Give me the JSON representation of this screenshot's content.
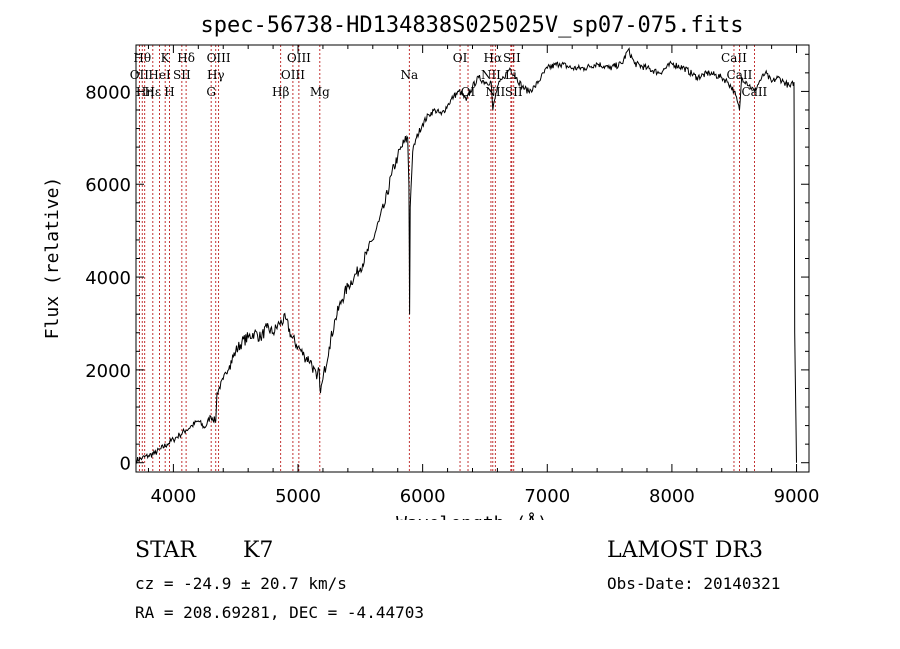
{
  "chart_data": {
    "type": "line",
    "title": "spec-56738-HD134838S025025V_sp07-075.fits",
    "xlabel": "Wavelength (Å)",
    "ylabel": "Flux (relative)",
    "xlim": [
      3700,
      9100
    ],
    "ylim": [
      -200,
      9000
    ],
    "xticks": [
      4000,
      5000,
      6000,
      7000,
      8000,
      9000
    ],
    "yticks": [
      0,
      2000,
      4000,
      6000,
      8000
    ],
    "tick_labels_x": [
      "4000",
      "5000",
      "6000",
      "7000",
      "8000",
      "9000"
    ],
    "tick_labels_y": [
      "0",
      "2000",
      "4000",
      "6000",
      "8000"
    ],
    "grid": false,
    "series": [
      {
        "name": "spectrum",
        "x": [
          3700,
          3750,
          3800,
          3850,
          3900,
          3950,
          4000,
          4050,
          4100,
          4150,
          4200,
          4250,
          4300,
          4340,
          4350,
          4400,
          4450,
          4500,
          4550,
          4600,
          4650,
          4700,
          4750,
          4800,
          4850,
          4900,
          4950,
          5000,
          5050,
          5100,
          5150,
          5170,
          5180,
          5200,
          5250,
          5300,
          5350,
          5400,
          5450,
          5500,
          5550,
          5600,
          5650,
          5700,
          5750,
          5800,
          5850,
          5880,
          5890,
          5895,
          5900,
          5920,
          5950,
          6000,
          6050,
          6100,
          6150,
          6200,
          6250,
          6300,
          6350,
          6400,
          6450,
          6500,
          6550,
          6563,
          6600,
          6650,
          6700,
          6750,
          6800,
          6850,
          6900,
          6950,
          7000,
          7100,
          7200,
          7300,
          7400,
          7500,
          7600,
          7650,
          7700,
          7800,
          7900,
          8000,
          8100,
          8200,
          8300,
          8400,
          8450,
          8500,
          8542,
          8560,
          8600,
          8662,
          8700,
          8750,
          8800,
          8850,
          8900,
          8950,
          8980,
          8985,
          9000
        ],
        "y": [
          50,
          100,
          150,
          200,
          300,
          400,
          500,
          600,
          700,
          800,
          900,
          750,
          1000,
          900,
          1500,
          1800,
          2100,
          2400,
          2600,
          2700,
          2800,
          2700,
          2900,
          2800,
          3000,
          3100,
          2700,
          2500,
          2300,
          2200,
          1800,
          2000,
          1500,
          1800,
          2500,
          3100,
          3500,
          3800,
          4000,
          4200,
          4500,
          4800,
          5200,
          5600,
          6200,
          6600,
          6900,
          7000,
          6000,
          3200,
          5500,
          6700,
          7000,
          7300,
          7500,
          7600,
          7500,
          7700,
          7900,
          8000,
          7800,
          8100,
          8300,
          8200,
          8200,
          7600,
          8100,
          8300,
          8500,
          8300,
          8100,
          8000,
          8100,
          8300,
          8500,
          8600,
          8500,
          8500,
          8600,
          8500,
          8600,
          8900,
          8600,
          8500,
          8400,
          8600,
          8500,
          8300,
          8400,
          8300,
          8200,
          8000,
          7600,
          8300,
          8200,
          8000,
          8200,
          8400,
          8200,
          8300,
          8200,
          8100,
          8200,
          2800,
          0
        ]
      }
    ],
    "line_markers": [
      {
        "wl": 3750,
        "label": "Hθ",
        "tier": 0
      },
      {
        "wl": 3727,
        "label": "OII",
        "tier": 1
      },
      {
        "wl": 3770,
        "label": "Hη",
        "tier": 2
      },
      {
        "wl": 3835,
        "label": "Hε",
        "tier": 2
      },
      {
        "wl": 3889,
        "label": "HeI",
        "tier": 1
      },
      {
        "wl": 3934,
        "label": "K",
        "tier": 0
      },
      {
        "wl": 3969,
        "label": "H",
        "tier": 2
      },
      {
        "wl": 4068,
        "label": "SII",
        "tier": 1
      },
      {
        "wl": 4102,
        "label": "Hδ",
        "tier": 0
      },
      {
        "wl": 4303,
        "label": "G",
        "tier": 2
      },
      {
        "wl": 4340,
        "label": "Hγ",
        "tier": 1
      },
      {
        "wl": 4363,
        "label": "OIII",
        "tier": 0
      },
      {
        "wl": 4861,
        "label": "Hβ",
        "tier": 2
      },
      {
        "wl": 4959,
        "label": "OIII",
        "tier": 1
      },
      {
        "wl": 5007,
        "label": "OIII",
        "tier": 0
      },
      {
        "wl": 5175,
        "label": "Mg",
        "tier": 2
      },
      {
        "wl": 5893,
        "label": "Na",
        "tier": 1
      },
      {
        "wl": 6300,
        "label": "OI",
        "tier": 0
      },
      {
        "wl": 6364,
        "label": "OI",
        "tier": 2
      },
      {
        "wl": 6548,
        "label": "NII",
        "tier": 1
      },
      {
        "wl": 6563,
        "label": "Hα",
        "tier": 0
      },
      {
        "wl": 6583,
        "label": "NII",
        "tier": 2
      },
      {
        "wl": 6708,
        "label": "Li",
        "tier": 1
      },
      {
        "wl": 6716,
        "label": "SII",
        "tier": 0
      },
      {
        "wl": 6731,
        "label": "SII",
        "tier": 2
      },
      {
        "wl": 8498,
        "label": "CaII",
        "tier": 0
      },
      {
        "wl": 8542,
        "label": "CaII",
        "tier": 1
      },
      {
        "wl": 8662,
        "label": "CaII",
        "tier": 2
      }
    ]
  },
  "info": {
    "object_class": "STAR",
    "subclass": "K7",
    "cz": "cz = -24.9 ± 20.7 km/s",
    "coords": "RA = 208.69281, DEC =  -4.44703",
    "survey": "LAMOST DR3",
    "obs_date": "Obs-Date: 20140321"
  },
  "colors": {
    "spectrum": "#000000",
    "marker_line": "#b30000",
    "marker_label": "#000000"
  }
}
